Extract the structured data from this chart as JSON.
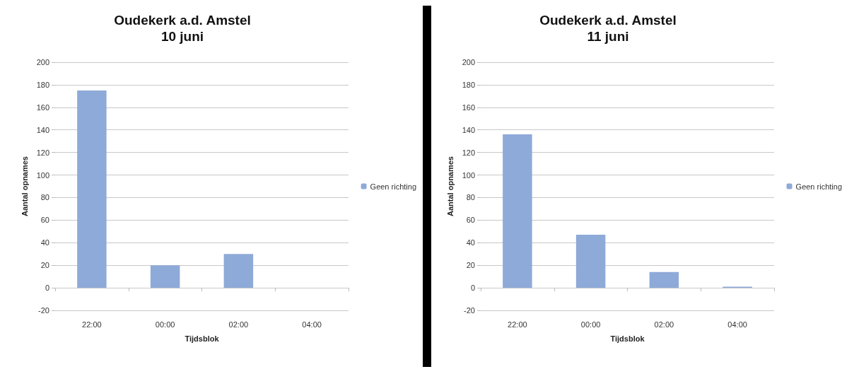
{
  "chart_data": [
    {
      "type": "bar",
      "title": "Oudekerk a.d. Amstel",
      "subtitle": "10 juni",
      "xlabel": "Tijdsblok",
      "ylabel": "Aantal opnames",
      "categories": [
        "22:00",
        "00:00",
        "02:00",
        "04:00"
      ],
      "series": [
        {
          "name": "Geen richting",
          "color": "#8eaad8",
          "values": [
            175,
            20,
            30,
            0
          ]
        }
      ],
      "ylim": [
        -20,
        200
      ],
      "yticks": [
        -20,
        0,
        20,
        40,
        60,
        80,
        100,
        120,
        140,
        160,
        180,
        200
      ],
      "grid": "y",
      "legend": "right"
    },
    {
      "type": "bar",
      "title": "Oudekerk a.d. Amstel",
      "subtitle": "11 juni",
      "xlabel": "Tijdsblok",
      "ylabel": "Aantal opnames",
      "categories": [
        "22:00",
        "00:00",
        "02:00",
        "04:00"
      ],
      "series": [
        {
          "name": "Geen richting",
          "color": "#8eaad8",
          "values": [
            136,
            47,
            14,
            1
          ]
        }
      ],
      "ylim": [
        -20,
        200
      ],
      "yticks": [
        -20,
        0,
        20,
        40,
        60,
        80,
        100,
        120,
        140,
        160,
        180,
        200
      ],
      "grid": "y",
      "legend": "right"
    }
  ]
}
